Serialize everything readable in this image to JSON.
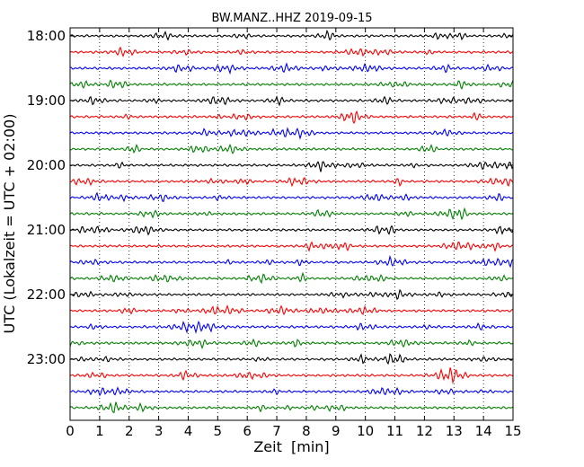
{
  "chart_data": {
    "type": "line",
    "title": "BW.MANZ..HHZ 2019-09-15",
    "xlabel": "Zeit  [min]",
    "ylabel": "UTC (Lokalzeit = UTC + 02:00)",
    "xlim": [
      0,
      15
    ],
    "x_ticks": [
      "0",
      "1",
      "2",
      "3",
      "4",
      "5",
      "6",
      "7",
      "8",
      "9",
      "10",
      "11",
      "12",
      "13",
      "14",
      "15"
    ],
    "y_tick_labels": [
      "18:00",
      "19:00",
      "20:00",
      "21:00",
      "22:00",
      "23:00"
    ],
    "vertical_grid": true,
    "trace_interval_minutes": 15,
    "colors": [
      "#000000",
      "#ff0000",
      "#0000ff",
      "#008000"
    ],
    "traces": [
      {
        "start": "18:00",
        "color": "#000000"
      },
      {
        "start": "18:15",
        "color": "#ff0000"
      },
      {
        "start": "18:30",
        "color": "#0000ff"
      },
      {
        "start": "18:45",
        "color": "#008000"
      },
      {
        "start": "19:00",
        "color": "#000000"
      },
      {
        "start": "19:15",
        "color": "#ff0000"
      },
      {
        "start": "19:30",
        "color": "#0000ff"
      },
      {
        "start": "19:45",
        "color": "#008000"
      },
      {
        "start": "20:00",
        "color": "#000000"
      },
      {
        "start": "20:15",
        "color": "#ff0000"
      },
      {
        "start": "20:30",
        "color": "#0000ff"
      },
      {
        "start": "20:45",
        "color": "#008000"
      },
      {
        "start": "21:00",
        "color": "#000000"
      },
      {
        "start": "21:15",
        "color": "#ff0000"
      },
      {
        "start": "21:30",
        "color": "#0000ff"
      },
      {
        "start": "21:45",
        "color": "#008000"
      },
      {
        "start": "22:00",
        "color": "#000000"
      },
      {
        "start": "22:15",
        "color": "#ff0000"
      },
      {
        "start": "22:30",
        "color": "#0000ff"
      },
      {
        "start": "22:45",
        "color": "#008000"
      },
      {
        "start": "23:00",
        "color": "#000000"
      },
      {
        "start": "23:15",
        "color": "#ff0000"
      },
      {
        "start": "23:30",
        "color": "#0000ff"
      },
      {
        "start": "23:45",
        "color": "#008000"
      }
    ]
  }
}
